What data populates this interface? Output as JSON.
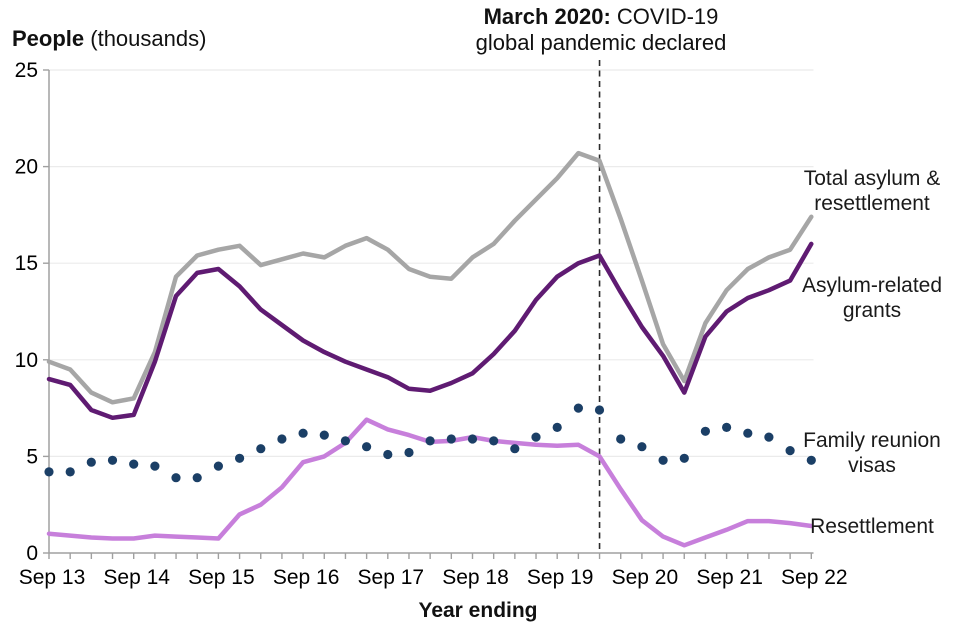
{
  "header": {
    "y_axis_title_bold": "People",
    "y_axis_title_rest": " (thousands)"
  },
  "annotation": {
    "line1_bold": "March 2020:",
    "line1_rest": " COVID-19",
    "line2": "global pandemic declared"
  },
  "x_axis_title": "Year ending",
  "series_labels": {
    "total": [
      "Total asylum &",
      "resettlement"
    ],
    "grants": [
      "Asylum-related",
      "grants"
    ],
    "family": [
      "Family reunion",
      "visas"
    ],
    "resettlement": [
      "Resettlement"
    ]
  },
  "colors": {
    "total": "#a6a6a6",
    "grants": "#5f1b72",
    "family": "#1b3f66",
    "resettlement": "#c77fdb",
    "axis": "#a0a0a0",
    "gridline": "#ebebeb",
    "dashed_line": "#2b2b2b",
    "text": "#000000"
  },
  "chart_data": {
    "type": "line",
    "title": "People (thousands)",
    "xlabel": "Year ending",
    "ylabel": "People (thousands)",
    "ylim": [
      0,
      25
    ],
    "y_ticks": [
      0,
      5,
      10,
      15,
      20,
      25
    ],
    "grid": true,
    "legend_position": "right-direct-labels",
    "x": [
      "Sep 13",
      "Dec 13",
      "Mar 14",
      "Jun 14",
      "Sep 14",
      "Dec 14",
      "Mar 15",
      "Jun 15",
      "Sep 15",
      "Dec 15",
      "Mar 16",
      "Jun 16",
      "Sep 16",
      "Dec 16",
      "Mar 17",
      "Jun 17",
      "Sep 17",
      "Dec 17",
      "Mar 18",
      "Jun 18",
      "Sep 18",
      "Dec 18",
      "Mar 19",
      "Jun 19",
      "Sep 19",
      "Dec 19",
      "Mar 20",
      "Jun 20",
      "Sep 20",
      "Dec 20",
      "Mar 21",
      "Jun 21",
      "Sep 21",
      "Dec 21",
      "Mar 22",
      "Jun 22",
      "Sep 22"
    ],
    "x_year_ticks": [
      {
        "index": 0,
        "label": "Sep 13"
      },
      {
        "index": 4,
        "label": "Sep 14"
      },
      {
        "index": 8,
        "label": "Sep 15"
      },
      {
        "index": 12,
        "label": "Sep 16"
      },
      {
        "index": 16,
        "label": "Sep 17"
      },
      {
        "index": 20,
        "label": "Sep 18"
      },
      {
        "index": 24,
        "label": "Sep 19"
      },
      {
        "index": 28,
        "label": "Sep 20"
      },
      {
        "index": 32,
        "label": "Sep 21"
      },
      {
        "index": 36,
        "label": "Sep 22"
      }
    ],
    "series": [
      {
        "name": "Total asylum & resettlement",
        "style": "line",
        "color": "#a6a6a6",
        "values": [
          9.9,
          9.5,
          8.3,
          7.8,
          8.0,
          10.4,
          14.3,
          15.4,
          15.7,
          15.9,
          14.9,
          15.2,
          15.5,
          15.3,
          15.9,
          16.3,
          15.7,
          14.7,
          14.3,
          14.2,
          15.3,
          16.0,
          17.2,
          18.3,
          19.4,
          20.7,
          20.3,
          17.3,
          14.1,
          10.8,
          8.9,
          11.9,
          13.6,
          14.7,
          15.3,
          15.7,
          17.4
        ]
      },
      {
        "name": "Asylum-related grants",
        "style": "line",
        "color": "#5f1b72",
        "values": [
          9.0,
          8.7,
          7.4,
          7.0,
          7.15,
          9.9,
          13.3,
          14.5,
          14.7,
          13.8,
          12.6,
          11.8,
          11.0,
          10.4,
          9.9,
          9.5,
          9.1,
          8.5,
          8.4,
          8.8,
          9.3,
          10.3,
          11.5,
          13.1,
          14.3,
          15.0,
          15.4,
          13.5,
          11.7,
          10.2,
          8.3,
          11.2,
          12.5,
          13.2,
          13.6,
          14.1,
          16.0
        ]
      },
      {
        "name": "Family reunion visas",
        "style": "points",
        "color": "#1b3f66",
        "values": [
          4.2,
          4.2,
          4.7,
          4.8,
          4.6,
          4.5,
          3.9,
          3.9,
          4.5,
          4.9,
          5.4,
          5.9,
          6.2,
          6.1,
          5.8,
          5.5,
          5.1,
          5.2,
          5.8,
          5.9,
          5.9,
          5.8,
          5.4,
          6.0,
          6.5,
          7.5,
          7.4,
          5.9,
          5.5,
          4.8,
          4.9,
          6.3,
          6.5,
          6.2,
          6.0,
          5.3,
          4.8
        ]
      },
      {
        "name": "Resettlement",
        "style": "line",
        "color": "#c77fdb",
        "values": [
          1.0,
          0.9,
          0.8,
          0.75,
          0.75,
          0.9,
          0.85,
          0.8,
          0.75,
          2.0,
          2.5,
          3.4,
          4.7,
          5.0,
          5.7,
          6.9,
          6.4,
          6.1,
          5.75,
          5.8,
          6.0,
          5.8,
          5.7,
          5.6,
          5.55,
          5.6,
          5.0,
          3.3,
          1.7,
          0.85,
          0.4,
          0.8,
          1.2,
          1.65,
          1.65,
          1.55,
          1.4
        ]
      }
    ],
    "annotation": {
      "x": "Mar 20",
      "text": "March 2020: COVID-19 global pandemic declared",
      "line_style": "dashed"
    }
  }
}
